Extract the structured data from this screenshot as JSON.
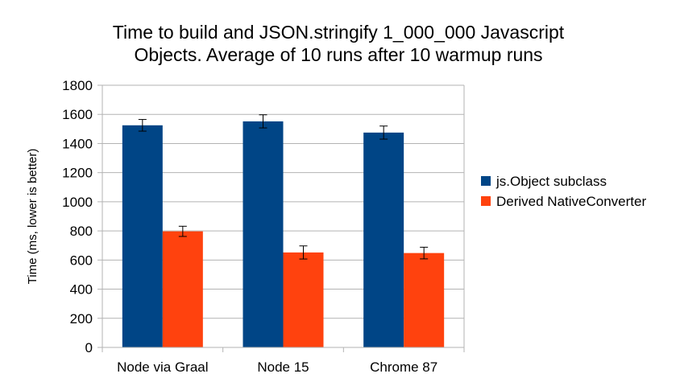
{
  "chart_data": {
    "type": "bar",
    "title_lines": [
      "Time to build and JSON.stringify 1_000_000 Javascript",
      "Objects. Average of 10 runs after 10 warmup runs"
    ],
    "xlabel": "",
    "ylabel": "Time (ms, lower is better)",
    "ylim": [
      0,
      1800
    ],
    "yticks": [
      0,
      200,
      400,
      600,
      800,
      1000,
      1200,
      1400,
      1600,
      1800
    ],
    "grid": true,
    "legend_position": "right",
    "categories": [
      "Node via Graal",
      "Node 15",
      "Chrome 87"
    ],
    "series": [
      {
        "name": "js.Object subclass",
        "color": "#004586",
        "values": [
          1525,
          1552,
          1475
        ],
        "errors": [
          40,
          45,
          45
        ]
      },
      {
        "name": "Derived NativeConverter",
        "color": "#ff420e",
        "values": [
          797,
          652,
          648
        ],
        "errors": [
          35,
          45,
          40
        ]
      }
    ]
  }
}
